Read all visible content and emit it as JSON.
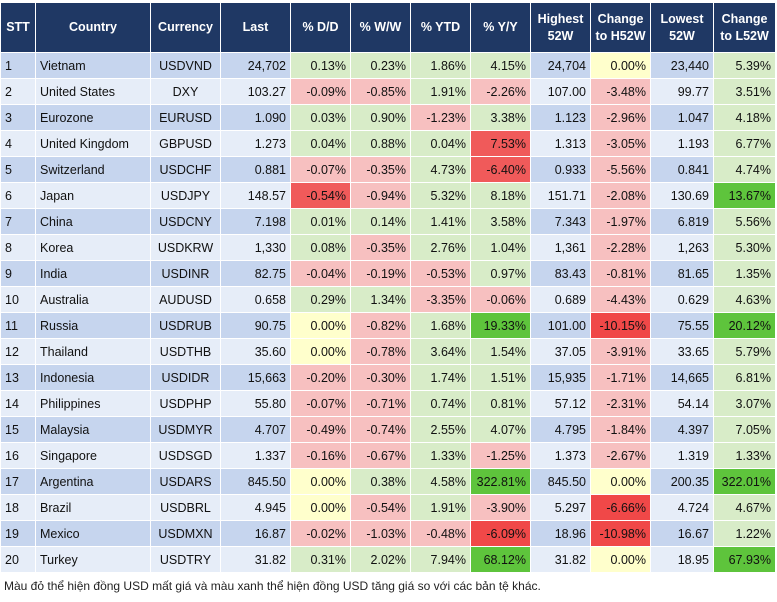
{
  "table": {
    "header": [
      "STT",
      "Country",
      "Currency",
      "Last",
      "% D/D",
      "% W/W",
      "% YTD",
      "% Y/Y",
      "Highest 52W",
      "Change to H52W",
      "Lowest 52W",
      "Change to L52W"
    ],
    "rows": [
      [
        "1",
        "Vietnam",
        "USDVND",
        "24,702",
        "0.13%",
        "0.23%",
        "1.86%",
        "4.15%",
        "24,704",
        "0.00%",
        "23,440",
        "5.39%"
      ],
      [
        "2",
        "United States",
        "DXY",
        "103.27",
        "-0.09%",
        "-0.85%",
        "1.91%",
        "-2.26%",
        "107.00",
        "-3.48%",
        "99.77",
        "3.51%"
      ],
      [
        "3",
        "Eurozone",
        "EURUSD",
        "1.090",
        "0.03%",
        "0.90%",
        "-1.23%",
        "3.38%",
        "1.123",
        "-2.96%",
        "1.047",
        "4.18%"
      ],
      [
        "4",
        "United Kingdom",
        "GBPUSD",
        "1.273",
        "0.04%",
        "0.88%",
        "0.04%",
        "7.53%",
        "1.313",
        "-3.05%",
        "1.193",
        "6.77%"
      ],
      [
        "5",
        "Switzerland",
        "USDCHF",
        "0.881",
        "-0.07%",
        "-0.35%",
        "4.73%",
        "-6.40%",
        "0.933",
        "-5.56%",
        "0.841",
        "4.74%"
      ],
      [
        "6",
        "Japan",
        "USDJPY",
        "148.57",
        "-0.54%",
        "-0.94%",
        "5.32%",
        "8.18%",
        "151.71",
        "-2.08%",
        "130.69",
        "13.67%"
      ],
      [
        "7",
        "China",
        "USDCNY",
        "7.198",
        "0.01%",
        "0.14%",
        "1.41%",
        "3.58%",
        "7.343",
        "-1.97%",
        "6.819",
        "5.56%"
      ],
      [
        "8",
        "Korea",
        "USDKRW",
        "1,330",
        "0.08%",
        "-0.35%",
        "2.76%",
        "1.04%",
        "1,361",
        "-2.28%",
        "1,263",
        "5.30%"
      ],
      [
        "9",
        "India",
        "USDINR",
        "82.75",
        "-0.04%",
        "-0.19%",
        "-0.53%",
        "0.97%",
        "83.43",
        "-0.81%",
        "81.65",
        "1.35%"
      ],
      [
        "10",
        "Australia",
        "AUDUSD",
        "0.658",
        "0.29%",
        "1.34%",
        "-3.35%",
        "-0.06%",
        "0.689",
        "-4.43%",
        "0.629",
        "4.63%"
      ],
      [
        "11",
        "Russia",
        "USDRUB",
        "90.75",
        "0.00%",
        "-0.82%",
        "1.68%",
        "19.33%",
        "101.00",
        "-10.15%",
        "75.55",
        "20.12%"
      ],
      [
        "12",
        "Thailand",
        "USDTHB",
        "35.60",
        "0.00%",
        "-0.78%",
        "3.64%",
        "1.54%",
        "37.05",
        "-3.91%",
        "33.65",
        "5.79%"
      ],
      [
        "13",
        "Indonesia",
        "USDIDR",
        "15,663",
        "-0.20%",
        "-0.30%",
        "1.74%",
        "1.51%",
        "15,935",
        "-1.71%",
        "14,665",
        "6.81%"
      ],
      [
        "14",
        "Philippines",
        "USDPHP",
        "55.80",
        "-0.07%",
        "-0.71%",
        "0.74%",
        "0.81%",
        "57.12",
        "-2.31%",
        "54.14",
        "3.07%"
      ],
      [
        "15",
        "Malaysia",
        "USDMYR",
        "4.707",
        "-0.49%",
        "-0.74%",
        "2.55%",
        "4.07%",
        "4.795",
        "-1.84%",
        "4.397",
        "7.05%"
      ],
      [
        "16",
        "Singapore",
        "USDSGD",
        "1.337",
        "-0.16%",
        "-0.67%",
        "1.33%",
        "-1.25%",
        "1.373",
        "-2.67%",
        "1.319",
        "1.33%"
      ],
      [
        "17",
        "Argentina",
        "USDARS",
        "845.50",
        "0.00%",
        "0.38%",
        "4.58%",
        "322.81%",
        "845.50",
        "0.00%",
        "200.35",
        "322.01%"
      ],
      [
        "18",
        "Brazil",
        "USDBRL",
        "4.945",
        "0.00%",
        "-0.54%",
        "1.91%",
        "-3.90%",
        "5.297",
        "-6.66%",
        "4.724",
        "4.67%"
      ],
      [
        "19",
        "Mexico",
        "USDMXN",
        "16.87",
        "-0.02%",
        "-1.03%",
        "-0.48%",
        "-6.09%",
        "18.96",
        "-10.98%",
        "16.67",
        "1.22%"
      ],
      [
        "20",
        "Turkey",
        "USDTRY",
        "31.82",
        "0.31%",
        "2.02%",
        "7.94%",
        "68.12%",
        "31.82",
        "0.00%",
        "18.95",
        "67.93%"
      ]
    ],
    "change_fills": [
      [
        "#d8ecc8",
        "#d8ecc8",
        "#d8ecc8",
        "#d8ecc8",
        "#ffffcc",
        "#d8ecc8"
      ],
      [
        "#f7c0c0",
        "#f7c0c0",
        "#d8ecc8",
        "#f7c0c0",
        "#f7c0c0",
        "#d8ecc8"
      ],
      [
        "#d8ecc8",
        "#d8ecc8",
        "#f7c0c0",
        "#d8ecc8",
        "#f7c0c0",
        "#d8ecc8"
      ],
      [
        "#d8ecc8",
        "#d8ecc8",
        "#d8ecc8",
        "#f05a5a",
        "#f7c0c0",
        "#d8ecc8"
      ],
      [
        "#f7c0c0",
        "#f7c0c0",
        "#d8ecc8",
        "#f05a5a",
        "#f7c0c0",
        "#d8ecc8"
      ],
      [
        "#f05a5a",
        "#f7c0c0",
        "#d8ecc8",
        "#d8ecc8",
        "#f7c0c0",
        "#5ec43c"
      ],
      [
        "#d8ecc8",
        "#d8ecc8",
        "#d8ecc8",
        "#d8ecc8",
        "#f7c0c0",
        "#d8ecc8"
      ],
      [
        "#d8ecc8",
        "#f7c0c0",
        "#d8ecc8",
        "#d8ecc8",
        "#f7c0c0",
        "#d8ecc8"
      ],
      [
        "#f7c0c0",
        "#f7c0c0",
        "#f7c0c0",
        "#d8ecc8",
        "#f7c0c0",
        "#d8ecc8"
      ],
      [
        "#d8ecc8",
        "#d8ecc8",
        "#f7c0c0",
        "#f7c0c0",
        "#f7c0c0",
        "#d8ecc8"
      ],
      [
        "#ffffcc",
        "#f7c0c0",
        "#d8ecc8",
        "#5ec43c",
        "#f04848",
        "#5ec43c"
      ],
      [
        "#ffffcc",
        "#f7c0c0",
        "#d8ecc8",
        "#d8ecc8",
        "#f7c0c0",
        "#d8ecc8"
      ],
      [
        "#f7c0c0",
        "#f7c0c0",
        "#d8ecc8",
        "#d8ecc8",
        "#f7c0c0",
        "#d8ecc8"
      ],
      [
        "#f7c0c0",
        "#f7c0c0",
        "#d8ecc8",
        "#d8ecc8",
        "#f7c0c0",
        "#d8ecc8"
      ],
      [
        "#f7c0c0",
        "#f7c0c0",
        "#d8ecc8",
        "#d8ecc8",
        "#f7c0c0",
        "#d8ecc8"
      ],
      [
        "#f7c0c0",
        "#f7c0c0",
        "#d8ecc8",
        "#f7c0c0",
        "#f7c0c0",
        "#d8ecc8"
      ],
      [
        "#ffffcc",
        "#d8ecc8",
        "#d8ecc8",
        "#5ec43c",
        "#ffffcc",
        "#5ec43c"
      ],
      [
        "#ffffcc",
        "#f7c0c0",
        "#d8ecc8",
        "#f7c0c0",
        "#f04848",
        "#d8ecc8"
      ],
      [
        "#f7c0c0",
        "#f7c0c0",
        "#f7c0c0",
        "#f04848",
        "#f04848",
        "#d8ecc8"
      ],
      [
        "#d8ecc8",
        "#d8ecc8",
        "#d8ecc8",
        "#5ec43c",
        "#ffffcc",
        "#5ec43c"
      ]
    ]
  },
  "footnote": "Màu đỏ thể hiện đồng USD mất giá và màu xanh thể hiện đồng USD tăng giá so với các bản tệ khác."
}
